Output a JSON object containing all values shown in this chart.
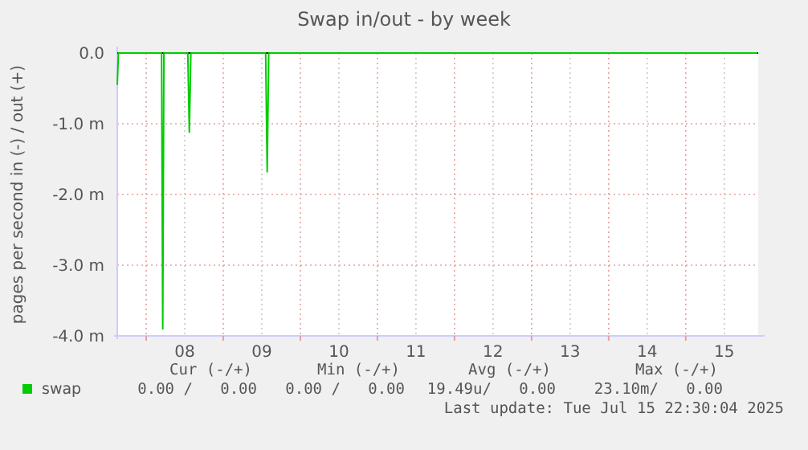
{
  "chart_data": {
    "type": "line",
    "title": "Swap in/out - by week",
    "ylabel": "pages per second in (-) / out (+)",
    "x": [
      7.625,
      7.64,
      8.2,
      8.215,
      8.23,
      8.54,
      8.56,
      8.58,
      9.55,
      9.57,
      9.59,
      15.93
    ],
    "series": [
      {
        "name": "swap",
        "color": "#00cc00",
        "values": [
          -0.45,
          0,
          0,
          -3.9,
          0,
          0,
          -1.12,
          0,
          0,
          -1.68,
          0,
          0
        ]
      }
    ],
    "xlim": [
      7.625,
      15.94
    ],
    "xticks": [
      {
        "value": 8,
        "label": null
      },
      {
        "value": 8.5,
        "label": "08"
      },
      {
        "value": 9,
        "label": null
      },
      {
        "value": 9.5,
        "label": "09"
      },
      {
        "value": 10,
        "label": null
      },
      {
        "value": 10.5,
        "label": "10"
      },
      {
        "value": 11,
        "label": null
      },
      {
        "value": 11.5,
        "label": "11"
      },
      {
        "value": 12,
        "label": null
      },
      {
        "value": 12.5,
        "label": "12"
      },
      {
        "value": 13,
        "label": null
      },
      {
        "value": 13.5,
        "label": "13"
      },
      {
        "value": 14,
        "label": null
      },
      {
        "value": 14.5,
        "label": "14"
      },
      {
        "value": 15,
        "label": null
      },
      {
        "value": 15.5,
        "label": "15"
      }
    ],
    "ylim": [
      -4,
      0
    ],
    "yticks": [
      {
        "value": 0,
        "label": "0.0"
      },
      {
        "value": -1,
        "label": "-1.0 m"
      },
      {
        "value": -2,
        "label": "-2.0 m"
      },
      {
        "value": -3,
        "label": "-3.0 m"
      },
      {
        "value": -4,
        "label": "-4.0 m"
      }
    ],
    "grid": true,
    "legend": "bottom",
    "marker": "none",
    "line_style": "solid",
    "annotations": [
      "Cur (-/+)",
      "Min (-/+)",
      "Avg (-/+)",
      "Max (-/+)",
      "0.00 /   0.00",
      "0.00 /   0.00",
      "19.49u/   0.00",
      "23.10m/   0.00",
      "Last update: Tue Jul 15 22:30:04 2025"
    ]
  }
}
